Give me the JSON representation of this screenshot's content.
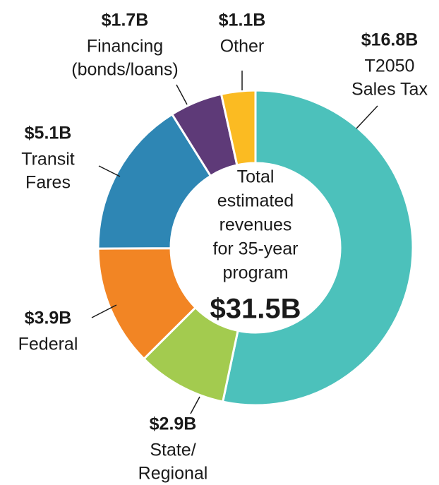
{
  "chart_data": {
    "type": "donut",
    "categories": [
      [
        "T2050",
        "Sales Tax"
      ],
      [
        "State/",
        "Regional"
      ],
      [
        "Federal"
      ],
      [
        "Transit",
        "Fares"
      ],
      [
        "Financing",
        "(bonds/loans)"
      ],
      [
        "Other"
      ]
    ],
    "values": [
      16.8,
      2.9,
      3.9,
      5.1,
      1.7,
      1.1
    ],
    "value_labels": [
      "$16.8B",
      "$2.9B",
      "$3.9B",
      "$5.1B",
      "$1.7B",
      "$1.1B"
    ],
    "colors": [
      "#4cc1bb",
      "#a3cb4f",
      "#f28524",
      "#2e86b4",
      "#5e3a78",
      "#fbbb22"
    ],
    "center_text": [
      "Total",
      "estimated",
      "revenues",
      "for 35-year",
      "program"
    ],
    "center_value": "$31.5B"
  }
}
